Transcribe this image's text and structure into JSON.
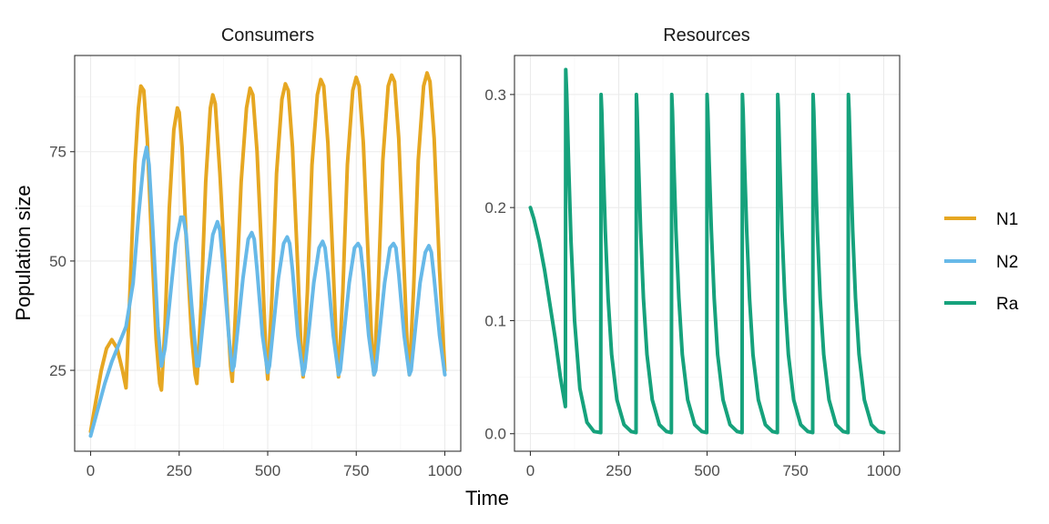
{
  "figure": {
    "xlabel": "Time",
    "ylabel": "Population size"
  },
  "colors": {
    "N1": "#E6A722",
    "N2": "#67B9E8",
    "Ra": "#16A27C"
  },
  "legend": {
    "position": "right",
    "items": [
      {
        "label": "N1",
        "color": "#E6A722"
      },
      {
        "label": "N2",
        "color": "#67B9E8"
      },
      {
        "label": "Ra",
        "color": "#16A27C"
      }
    ]
  },
  "chart_data": [
    {
      "type": "line",
      "title": "Consumers",
      "xlim": [
        -45,
        1045
      ],
      "ylim": [
        6.5,
        97
      ],
      "xticks": [
        0,
        250,
        500,
        750,
        1000
      ],
      "yticks": [
        25,
        50,
        75
      ],
      "grid": true,
      "series": [
        {
          "name": "N1",
          "x": [
            0,
            15,
            30,
            45,
            60,
            75,
            90,
            100,
            112,
            125,
            135,
            142,
            150,
            160,
            172,
            185,
            195,
            200,
            210,
            222,
            235,
            245,
            250,
            258,
            270,
            285,
            295,
            300,
            312,
            325,
            338,
            345,
            352,
            365,
            385,
            395,
            400,
            410,
            425,
            440,
            450,
            458,
            470,
            485,
            495,
            500,
            512,
            525,
            540,
            550,
            558,
            570,
            585,
            595,
            600,
            612,
            625,
            640,
            650,
            658,
            670,
            685,
            695,
            700,
            712,
            725,
            740,
            750,
            758,
            770,
            785,
            795,
            800,
            812,
            825,
            840,
            850,
            858,
            870,
            885,
            895,
            900,
            912,
            925,
            940,
            950,
            958,
            970,
            985,
            1000
          ],
          "y": [
            11,
            18,
            25,
            30,
            32,
            30,
            25,
            21,
            45,
            72,
            85,
            90,
            89,
            78,
            55,
            32,
            22,
            20.5,
            35,
            62,
            80,
            85,
            84,
            76,
            55,
            33,
            24,
            22,
            40,
            68,
            85,
            88,
            86,
            70,
            40,
            26,
            22.5,
            40,
            68,
            85,
            89.5,
            88,
            75,
            48,
            28,
            23,
            42,
            70,
            87,
            90.5,
            89,
            76,
            48,
            28,
            23.5,
            43,
            72,
            88,
            91.5,
            90,
            77,
            48,
            28,
            23.5,
            43,
            72,
            89,
            92,
            90,
            77,
            48,
            28,
            24,
            44,
            73,
            90,
            92.5,
            91,
            78,
            48,
            28,
            24,
            44,
            73,
            90,
            93,
            91,
            78,
            48,
            25
          ]
        },
        {
          "name": "N2",
          "x": [
            0,
            20,
            40,
            60,
            80,
            100,
            120,
            135,
            150,
            158,
            165,
            175,
            190,
            200,
            210,
            225,
            240,
            255,
            262,
            270,
            285,
            300,
            305,
            315,
            330,
            345,
            358,
            365,
            375,
            390,
            400,
            405,
            415,
            430,
            445,
            455,
            462,
            470,
            485,
            500,
            505,
            515,
            530,
            545,
            555,
            562,
            570,
            585,
            600,
            605,
            615,
            630,
            645,
            655,
            662,
            670,
            685,
            700,
            705,
            715,
            730,
            745,
            755,
            762,
            770,
            785,
            800,
            805,
            815,
            830,
            845,
            855,
            862,
            870,
            885,
            900,
            905,
            915,
            930,
            945,
            955,
            962,
            970,
            985,
            1000
          ],
          "y": [
            10,
            16,
            22,
            27,
            31,
            35,
            45,
            60,
            73,
            76,
            72,
            58,
            35,
            26,
            30,
            42,
            54,
            60,
            60,
            56,
            40,
            26,
            26,
            34,
            46,
            56,
            59,
            57,
            48,
            33,
            25,
            26,
            34,
            46,
            55,
            56.5,
            55,
            48,
            33,
            24.5,
            26,
            34,
            46,
            54,
            55.5,
            54,
            48,
            33,
            24,
            25.5,
            33,
            45,
            53,
            54.5,
            53,
            47,
            33,
            24,
            25,
            33,
            45,
            53,
            54,
            53,
            47,
            33,
            24,
            25,
            33,
            45,
            53,
            54,
            53,
            47,
            33,
            24,
            25,
            33,
            45,
            52,
            53.5,
            52,
            46,
            33,
            24
          ]
        }
      ]
    },
    {
      "type": "line",
      "title": "Resources",
      "xlim": [
        -45,
        1045
      ],
      "ylim": [
        -0.0155,
        0.3345
      ],
      "xticks": [
        0,
        250,
        500,
        750,
        1000
      ],
      "yticks": [
        0.0,
        0.1,
        0.2,
        0.3
      ],
      "grid": true,
      "series": [
        {
          "name": "Ra",
          "x": [
            0,
            10,
            25,
            40,
            55,
            70,
            85,
            99,
            100,
            103,
            108,
            115,
            125,
            140,
            160,
            180,
            199,
            200,
            202,
            206,
            212,
            220,
            230,
            245,
            265,
            285,
            299,
            300,
            302,
            306,
            312,
            320,
            330,
            345,
            365,
            385,
            399,
            400,
            402,
            406,
            412,
            420,
            430,
            445,
            465,
            485,
            499,
            500,
            502,
            506,
            512,
            520,
            530,
            545,
            565,
            585,
            599,
            600,
            602,
            606,
            612,
            620,
            630,
            645,
            665,
            685,
            699,
            700,
            702,
            706,
            712,
            720,
            730,
            745,
            765,
            785,
            799,
            800,
            802,
            806,
            812,
            820,
            830,
            845,
            865,
            885,
            899,
            900,
            902,
            906,
            912,
            920,
            930,
            945,
            965,
            985,
            1000
          ],
          "y": [
            0.2,
            0.19,
            0.17,
            0.145,
            0.115,
            0.085,
            0.05,
            0.024,
            0.322,
            0.3,
            0.24,
            0.17,
            0.1,
            0.04,
            0.01,
            0.002,
            0.001,
            0.3,
            0.285,
            0.24,
            0.18,
            0.12,
            0.07,
            0.03,
            0.008,
            0.002,
            0.001,
            0.3,
            0.285,
            0.24,
            0.18,
            0.12,
            0.07,
            0.03,
            0.008,
            0.002,
            0.001,
            0.3,
            0.285,
            0.24,
            0.18,
            0.12,
            0.07,
            0.03,
            0.008,
            0.002,
            0.001,
            0.3,
            0.285,
            0.24,
            0.18,
            0.12,
            0.07,
            0.03,
            0.008,
            0.002,
            0.001,
            0.3,
            0.285,
            0.24,
            0.18,
            0.12,
            0.07,
            0.03,
            0.008,
            0.002,
            0.001,
            0.3,
            0.285,
            0.24,
            0.18,
            0.12,
            0.07,
            0.03,
            0.008,
            0.002,
            0.001,
            0.3,
            0.285,
            0.24,
            0.18,
            0.12,
            0.07,
            0.03,
            0.008,
            0.002,
            0.001,
            0.3,
            0.285,
            0.24,
            0.18,
            0.12,
            0.07,
            0.03,
            0.008,
            0.002,
            0.001
          ]
        }
      ]
    }
  ]
}
